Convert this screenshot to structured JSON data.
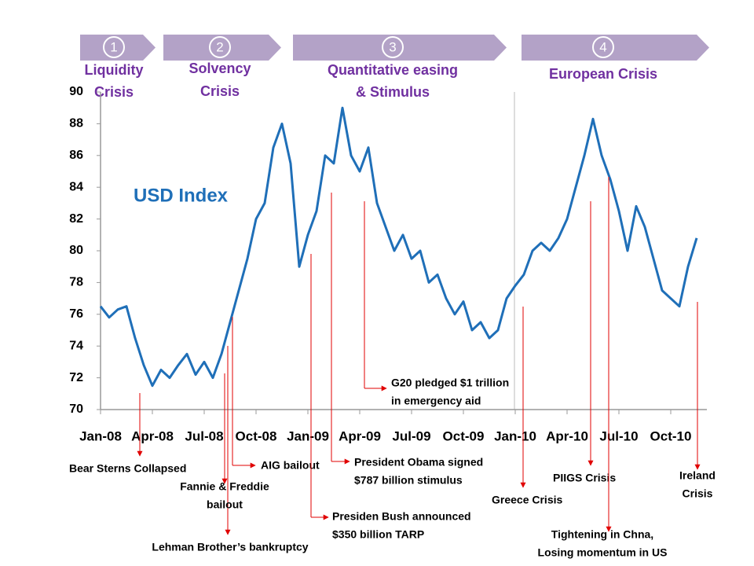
{
  "chart_data": {
    "type": "line",
    "title": "USD Index",
    "phases": [
      {
        "number": "1",
        "lines": [
          "Liquidity",
          "Crisis"
        ]
      },
      {
        "number": "2",
        "lines": [
          "Solvency",
          "Crisis"
        ]
      },
      {
        "number": "3",
        "lines": [
          "Quantitative easing",
          "& Stimulus"
        ]
      },
      {
        "number": "4",
        "lines": [
          "European Crisis"
        ]
      }
    ],
    "x": [
      0,
      0.5,
      1,
      1.5,
      2,
      2.5,
      3,
      3.5,
      4,
      4.5,
      5,
      5.5,
      6,
      6.5,
      7,
      7.5,
      8,
      8.5,
      9,
      9.5,
      10,
      10.5,
      11,
      11.5,
      12,
      12.5,
      13,
      13.5,
      14,
      14.5,
      15,
      15.5,
      16,
      16.5,
      17,
      17.5,
      18,
      18.5,
      19,
      19.5,
      20,
      20.5,
      21,
      21.5,
      22,
      22.5,
      23,
      23.5,
      24,
      24.5,
      25,
      25.5,
      26,
      26.5,
      27,
      27.5,
      28,
      28.5,
      29,
      29.5,
      30,
      30.5,
      31,
      31.5,
      32,
      32.5,
      33,
      33.5,
      34,
      34.5
    ],
    "series": [
      {
        "name": "USD Index",
        "color": "#1f6fb8",
        "values": [
          76.5,
          75.8,
          76.3,
          76.5,
          74.5,
          72.8,
          71.5,
          72.5,
          72.0,
          72.8,
          73.5,
          72.2,
          73.0,
          72.0,
          73.5,
          75.5,
          77.5,
          79.5,
          82.0,
          83.0,
          86.5,
          88.0,
          85.5,
          79.0,
          81.0,
          82.5,
          86.0,
          85.5,
          89.0,
          86.0,
          85.0,
          86.5,
          83.0,
          81.5,
          80.0,
          81.0,
          79.5,
          80.0,
          78.0,
          78.5,
          77.0,
          76.0,
          76.8,
          75.0,
          75.5,
          74.5,
          75.0,
          77.0,
          77.8,
          78.5,
          80.0,
          80.5,
          80.0,
          80.8,
          82.0,
          84.0,
          86.0,
          88.3,
          86.0,
          84.5,
          82.5,
          80.0,
          82.8,
          81.5,
          79.5,
          77.5,
          77.0,
          76.5,
          79.0,
          80.8
        ]
      }
    ],
    "xlim": [
      0,
      35
    ],
    "xticks": [
      {
        "value": 0,
        "label": "Jan-08"
      },
      {
        "value": 3,
        "label": "Apr-08"
      },
      {
        "value": 6,
        "label": "Jul-08"
      },
      {
        "value": 9,
        "label": "Oct-08"
      },
      {
        "value": 12,
        "label": "Jan-09"
      },
      {
        "value": 15,
        "label": "Apr-09"
      },
      {
        "value": 18,
        "label": "Jul-09"
      },
      {
        "value": 21,
        "label": "Oct-09"
      },
      {
        "value": 24,
        "label": "Jan-10"
      },
      {
        "value": 27,
        "label": "Apr-10"
      },
      {
        "value": 30,
        "label": "Jul-10"
      },
      {
        "value": 33,
        "label": "Oct-10"
      }
    ],
    "ylim": [
      70,
      90
    ],
    "yticks": [
      70,
      72,
      74,
      76,
      78,
      80,
      82,
      84,
      86,
      88,
      90
    ],
    "annotations": [
      {
        "lines": [
          "Bear Sterns Collapsed"
        ]
      },
      {
        "lines": [
          "Lehman Brother’s bankruptcy"
        ]
      },
      {
        "lines": [
          "Fannie & Freddie",
          "bailout"
        ]
      },
      {
        "lines": [
          "AIG bailout"
        ]
      },
      {
        "lines": [
          "Presiden Bush announced",
          "$350 billion TARP"
        ]
      },
      {
        "lines": [
          "President Obama signed",
          "$787 billion stimulus"
        ]
      },
      {
        "lines": [
          "G20 pledged $1 trillion",
          "in emergency aid"
        ]
      },
      {
        "lines": [
          "Greece Crisis"
        ]
      },
      {
        "lines": [
          "PIIGS Crisis"
        ]
      },
      {
        "lines": [
          "Tightening in Chna,",
          "Losing momentum in US"
        ]
      },
      {
        "lines": [
          "Ireland",
          "Crisis"
        ]
      }
    ]
  }
}
